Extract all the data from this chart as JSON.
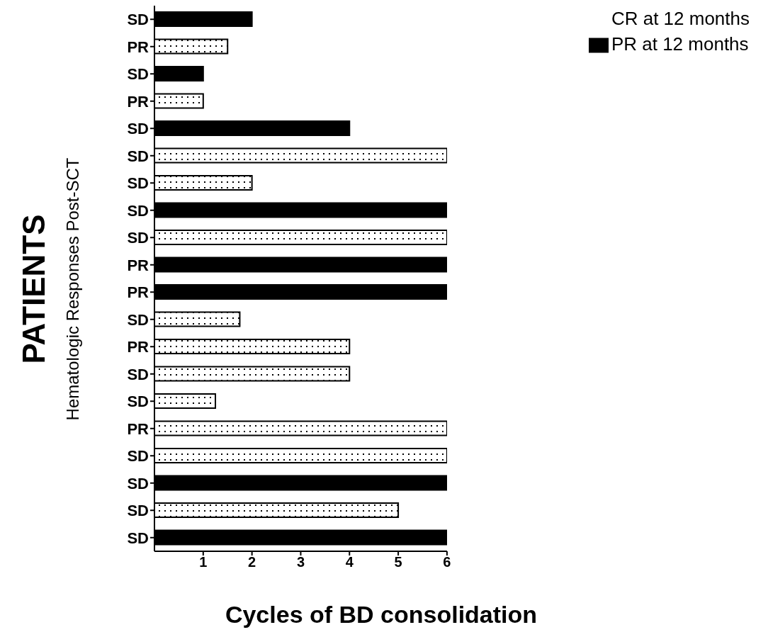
{
  "chart_data": {
    "type": "bar",
    "orientation": "horizontal",
    "stacked": true,
    "title": "PATIENTS",
    "ylabel": "Hematologic Responses Post-SCT",
    "xlabel": "Cycles of BD consolidation",
    "categories": [
      "SD",
      "PR",
      "SD",
      "PR",
      "SD",
      "SD",
      "SD",
      "SD",
      "SD",
      "PR",
      "PR",
      "SD",
      "PR",
      "SD",
      "SD",
      "PR",
      "SD",
      "SD",
      "SD",
      "SD"
    ],
    "series": [
      {
        "name": "CR at 12 months",
        "color": "#ffffff",
        "values": [
          null,
          1.5,
          null,
          1,
          null,
          6,
          2,
          null,
          6,
          null,
          null,
          1.75,
          4,
          4,
          1.25,
          6,
          6,
          null,
          5,
          null
        ]
      },
      {
        "name": "PR at 12 months",
        "color": "#000000",
        "values": [
          2,
          null,
          1,
          null,
          4,
          null,
          null,
          6,
          null,
          6,
          6,
          null,
          null,
          null,
          null,
          null,
          null,
          6,
          null,
          6
        ]
      }
    ],
    "xlim": [
      0,
      6
    ],
    "xticks": [
      1,
      2,
      3,
      4,
      5,
      6
    ],
    "grid": false,
    "legend": "top right"
  }
}
